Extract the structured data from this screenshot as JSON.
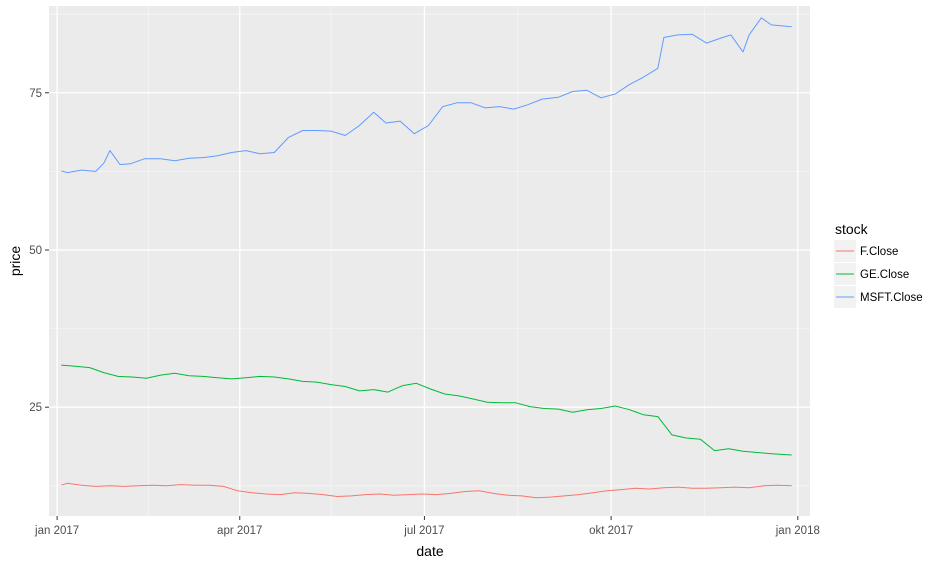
{
  "chart_data": {
    "type": "line",
    "xlabel": "date",
    "ylabel": "price",
    "x_ticks": [
      "jan 2017",
      "apr 2017",
      "jul 2017",
      "okt 2017",
      "jan 2018"
    ],
    "y_ticks": [
      "25",
      "50",
      "75"
    ],
    "xlim": [
      "2016-12-28",
      "2018-01-07"
    ],
    "ylim": [
      7.7,
      88.8
    ],
    "y_minor_ticks": [
      12.5,
      37.5,
      62.5,
      87.5
    ],
    "grid": true,
    "legend_title": "stock",
    "legend_position": "right",
    "series": [
      {
        "name": "F.Close",
        "color": "#F8766D",
        "x": [
          "2017-01-03",
          "2017-01-06",
          "2017-01-13",
          "2017-01-20",
          "2017-01-27",
          "2017-02-03",
          "2017-02-10",
          "2017-02-17",
          "2017-02-24",
          "2017-03-03",
          "2017-03-10",
          "2017-03-17",
          "2017-03-24",
          "2017-03-31",
          "2017-04-07",
          "2017-04-14",
          "2017-04-21",
          "2017-04-28",
          "2017-05-05",
          "2017-05-12",
          "2017-05-19",
          "2017-05-26",
          "2017-06-02",
          "2017-06-09",
          "2017-06-16",
          "2017-06-23",
          "2017-06-30",
          "2017-07-07",
          "2017-07-14",
          "2017-07-21",
          "2017-07-28",
          "2017-08-04",
          "2017-08-11",
          "2017-08-18",
          "2017-08-25",
          "2017-09-01",
          "2017-09-08",
          "2017-09-15",
          "2017-09-22",
          "2017-09-29",
          "2017-10-06",
          "2017-10-13",
          "2017-10-20",
          "2017-10-27",
          "2017-11-03",
          "2017-11-10",
          "2017-11-17",
          "2017-11-24",
          "2017-12-01",
          "2017-12-08",
          "2017-12-15",
          "2017-12-22",
          "2017-12-29"
        ],
        "y": [
          12.6,
          12.9,
          12.6,
          12.4,
          12.5,
          12.4,
          12.5,
          12.6,
          12.5,
          12.7,
          12.6,
          12.6,
          12.4,
          11.7,
          11.4,
          11.2,
          11.1,
          11.4,
          11.3,
          11.1,
          10.8,
          10.9,
          11.1,
          11.2,
          11.0,
          11.1,
          11.2,
          11.1,
          11.3,
          11.6,
          11.7,
          11.3,
          11.0,
          10.9,
          10.6,
          10.7,
          10.9,
          11.1,
          11.4,
          11.7,
          11.9,
          12.1,
          12.0,
          12.2,
          12.3,
          12.1,
          12.1,
          12.2,
          12.3,
          12.2,
          12.5,
          12.6,
          12.5
        ]
      },
      {
        "name": "GE.Close",
        "color": "#00BA38",
        "x": [
          "2017-01-03",
          "2017-01-10",
          "2017-01-17",
          "2017-01-24",
          "2017-01-31",
          "2017-02-07",
          "2017-02-14",
          "2017-02-21",
          "2017-02-28",
          "2017-03-07",
          "2017-03-14",
          "2017-03-21",
          "2017-03-28",
          "2017-04-04",
          "2017-04-11",
          "2017-04-18",
          "2017-04-25",
          "2017-05-02",
          "2017-05-09",
          "2017-05-16",
          "2017-05-23",
          "2017-05-30",
          "2017-06-06",
          "2017-06-13",
          "2017-06-20",
          "2017-06-27",
          "2017-07-04",
          "2017-07-11",
          "2017-07-18",
          "2017-07-25",
          "2017-08-01",
          "2017-08-08",
          "2017-08-15",
          "2017-08-22",
          "2017-08-29",
          "2017-09-05",
          "2017-09-12",
          "2017-09-19",
          "2017-09-26",
          "2017-10-03",
          "2017-10-10",
          "2017-10-17",
          "2017-10-24",
          "2017-10-31",
          "2017-11-07",
          "2017-11-14",
          "2017-11-21",
          "2017-11-28",
          "2017-12-05",
          "2017-12-12",
          "2017-12-19",
          "2017-12-29"
        ],
        "y": [
          31.7,
          31.5,
          31.3,
          30.5,
          29.9,
          29.8,
          29.6,
          30.1,
          30.4,
          30.0,
          29.9,
          29.7,
          29.5,
          29.7,
          29.9,
          29.8,
          29.5,
          29.1,
          29.0,
          28.6,
          28.3,
          27.6,
          27.8,
          27.4,
          28.4,
          28.8,
          27.9,
          27.1,
          26.8,
          26.3,
          25.8,
          25.7,
          25.7,
          25.1,
          24.8,
          24.7,
          24.2,
          24.6,
          24.8,
          25.2,
          24.6,
          23.8,
          23.5,
          20.6,
          20.1,
          19.9,
          18.1,
          18.4,
          18.0,
          17.8,
          17.6,
          17.4
        ]
      },
      {
        "name": "MSFT.Close",
        "color": "#619CFF",
        "x": [
          "2017-01-03",
          "2017-01-06",
          "2017-01-13",
          "2017-01-20",
          "2017-01-24",
          "2017-01-27",
          "2017-02-01",
          "2017-02-06",
          "2017-02-13",
          "2017-02-21",
          "2017-02-28",
          "2017-03-07",
          "2017-03-14",
          "2017-03-21",
          "2017-03-28",
          "2017-04-04",
          "2017-04-11",
          "2017-04-18",
          "2017-04-25",
          "2017-05-02",
          "2017-05-09",
          "2017-05-16",
          "2017-05-23",
          "2017-05-30",
          "2017-06-06",
          "2017-06-12",
          "2017-06-19",
          "2017-06-26",
          "2017-07-03",
          "2017-07-10",
          "2017-07-17",
          "2017-07-24",
          "2017-07-31",
          "2017-08-07",
          "2017-08-14",
          "2017-08-21",
          "2017-08-28",
          "2017-09-05",
          "2017-09-12",
          "2017-09-19",
          "2017-09-26",
          "2017-10-03",
          "2017-10-10",
          "2017-10-17",
          "2017-10-24",
          "2017-10-27",
          "2017-11-03",
          "2017-11-10",
          "2017-11-17",
          "2017-11-24",
          "2017-11-29",
          "2017-12-05",
          "2017-12-08",
          "2017-12-14",
          "2017-12-19",
          "2017-12-29"
        ],
        "y": [
          62.6,
          62.3,
          62.7,
          62.5,
          63.8,
          65.8,
          63.6,
          63.7,
          64.5,
          64.5,
          64.2,
          64.6,
          64.7,
          65.0,
          65.5,
          65.8,
          65.3,
          65.5,
          67.9,
          69.0,
          69.0,
          68.9,
          68.2,
          69.8,
          71.9,
          70.2,
          70.5,
          68.5,
          69.8,
          72.8,
          73.4,
          73.4,
          72.6,
          72.8,
          72.4,
          73.1,
          74.0,
          74.3,
          75.2,
          75.4,
          74.2,
          74.8,
          76.3,
          77.5,
          78.9,
          83.8,
          84.2,
          84.3,
          82.9,
          83.7,
          84.2,
          81.5,
          84.2,
          86.9,
          85.8,
          85.5
        ]
      }
    ]
  }
}
